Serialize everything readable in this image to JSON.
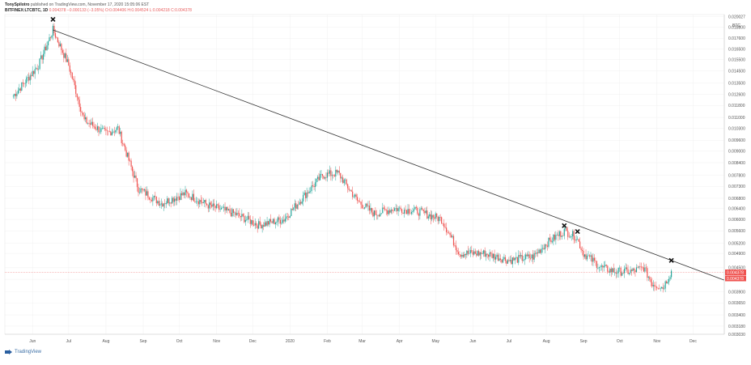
{
  "header": {
    "author": "TonySpilotro",
    "published": "published on TradingView.com, November 17, 2020 15:05:06 EST",
    "symbol": "BITFINEX:LTCBTC, 1D",
    "last": "0.004378",
    "change": "−0.000133 (−3.05%)",
    "ohlc_o": "O:0.004406",
    "ohlc_h": "H:0.004524",
    "ohlc_l": "L:0.004218",
    "ohlc_c": "C:0.004378"
  },
  "footer": {
    "logo": "TradingView",
    "logo_icon": "tradingview-logo-icon"
  },
  "colors": {
    "up": "#26a69a",
    "down": "#ef5350",
    "trendline": "#333333",
    "grid": "#f0f0f0",
    "price_tag": "#ef5350"
  },
  "chart_data": {
    "type": "candlestick",
    "title": "",
    "currency_label": "BTC",
    "price_scale": "log",
    "ylim": [
      0.00303,
      0.02027
    ],
    "y_ticks": [
      "0.020027",
      "0.018800",
      "0.017600",
      "0.016500",
      "0.015500",
      "0.014500",
      "0.013500",
      "0.012600",
      "0.011800",
      "0.011000",
      "0.010300",
      "0.009600",
      "0.009000",
      "0.008400",
      "0.007800",
      "0.007300",
      "0.006800",
      "0.006400",
      "0.006000",
      "0.005600",
      "0.005200",
      "0.004900",
      "0.004500",
      "0.004200",
      "0.003900",
      "0.003650",
      "0.003400",
      "0.003180",
      "0.003030"
    ],
    "x_ticks": [
      "Jun",
      "Jul",
      "Aug",
      "Sep",
      "Oct",
      "Nov",
      "Dec",
      "2020",
      "Feb",
      "Mar",
      "Apr",
      "May",
      "Jun",
      "Jul",
      "Aug",
      "Sep",
      "Oct",
      "Nov",
      "Dec"
    ],
    "last_price_tag": "0.004378",
    "secondary_tag": "0.004378",
    "key_points": [
      {
        "date": "2019-05-20",
        "close": 0.0125
      },
      {
        "date": "2019-06-10",
        "close": 0.015
      },
      {
        "date": "2019-06-22",
        "close": 0.0185
      },
      {
        "date": "2019-07-05",
        "close": 0.015
      },
      {
        "date": "2019-07-18",
        "close": 0.0108
      },
      {
        "date": "2019-08-05",
        "close": 0.01
      },
      {
        "date": "2019-08-15",
        "close": 0.0103
      },
      {
        "date": "2019-09-01",
        "close": 0.0072
      },
      {
        "date": "2019-09-20",
        "close": 0.0066
      },
      {
        "date": "2019-10-10",
        "close": 0.007
      },
      {
        "date": "2019-10-30",
        "close": 0.0065
      },
      {
        "date": "2019-11-20",
        "close": 0.0062
      },
      {
        "date": "2019-12-10",
        "close": 0.0058
      },
      {
        "date": "2019-12-31",
        "close": 0.006
      },
      {
        "date": "2020-01-15",
        "close": 0.0068
      },
      {
        "date": "2020-02-01",
        "close": 0.0078
      },
      {
        "date": "2020-02-14",
        "close": 0.0079
      },
      {
        "date": "2020-03-01",
        "close": 0.0067
      },
      {
        "date": "2020-03-15",
        "close": 0.0062
      },
      {
        "date": "2020-04-01",
        "close": 0.0064
      },
      {
        "date": "2020-04-20",
        "close": 0.0063
      },
      {
        "date": "2020-05-10",
        "close": 0.006
      },
      {
        "date": "2020-05-25",
        "close": 0.0049
      },
      {
        "date": "2020-06-15",
        "close": 0.0049
      },
      {
        "date": "2020-07-05",
        "close": 0.0047
      },
      {
        "date": "2020-07-25",
        "close": 0.0048
      },
      {
        "date": "2020-08-05",
        "close": 0.0052
      },
      {
        "date": "2020-08-20",
        "close": 0.0056
      },
      {
        "date": "2020-08-30",
        "close": 0.0054
      },
      {
        "date": "2020-09-05",
        "close": 0.0049
      },
      {
        "date": "2020-09-20",
        "close": 0.0045
      },
      {
        "date": "2020-10-01",
        "close": 0.0044
      },
      {
        "date": "2020-10-15",
        "close": 0.0044
      },
      {
        "date": "2020-10-25",
        "close": 0.0045
      },
      {
        "date": "2020-11-01",
        "close": 0.0041
      },
      {
        "date": "2020-11-10",
        "close": 0.004
      },
      {
        "date": "2020-11-17",
        "close": 0.0044
      }
    ],
    "trendline": {
      "start": {
        "date": "2019-06-22",
        "price": 0.0185
      },
      "end": {
        "date": "2020-12-31",
        "price": 0.00418
      }
    },
    "markers": [
      {
        "date": "2019-06-22",
        "price": 0.0197
      },
      {
        "date": "2020-08-20",
        "price": 0.00578
      },
      {
        "date": "2020-08-31",
        "price": 0.00558
      },
      {
        "date": "2020-11-17",
        "price": 0.0047
      }
    ]
  }
}
